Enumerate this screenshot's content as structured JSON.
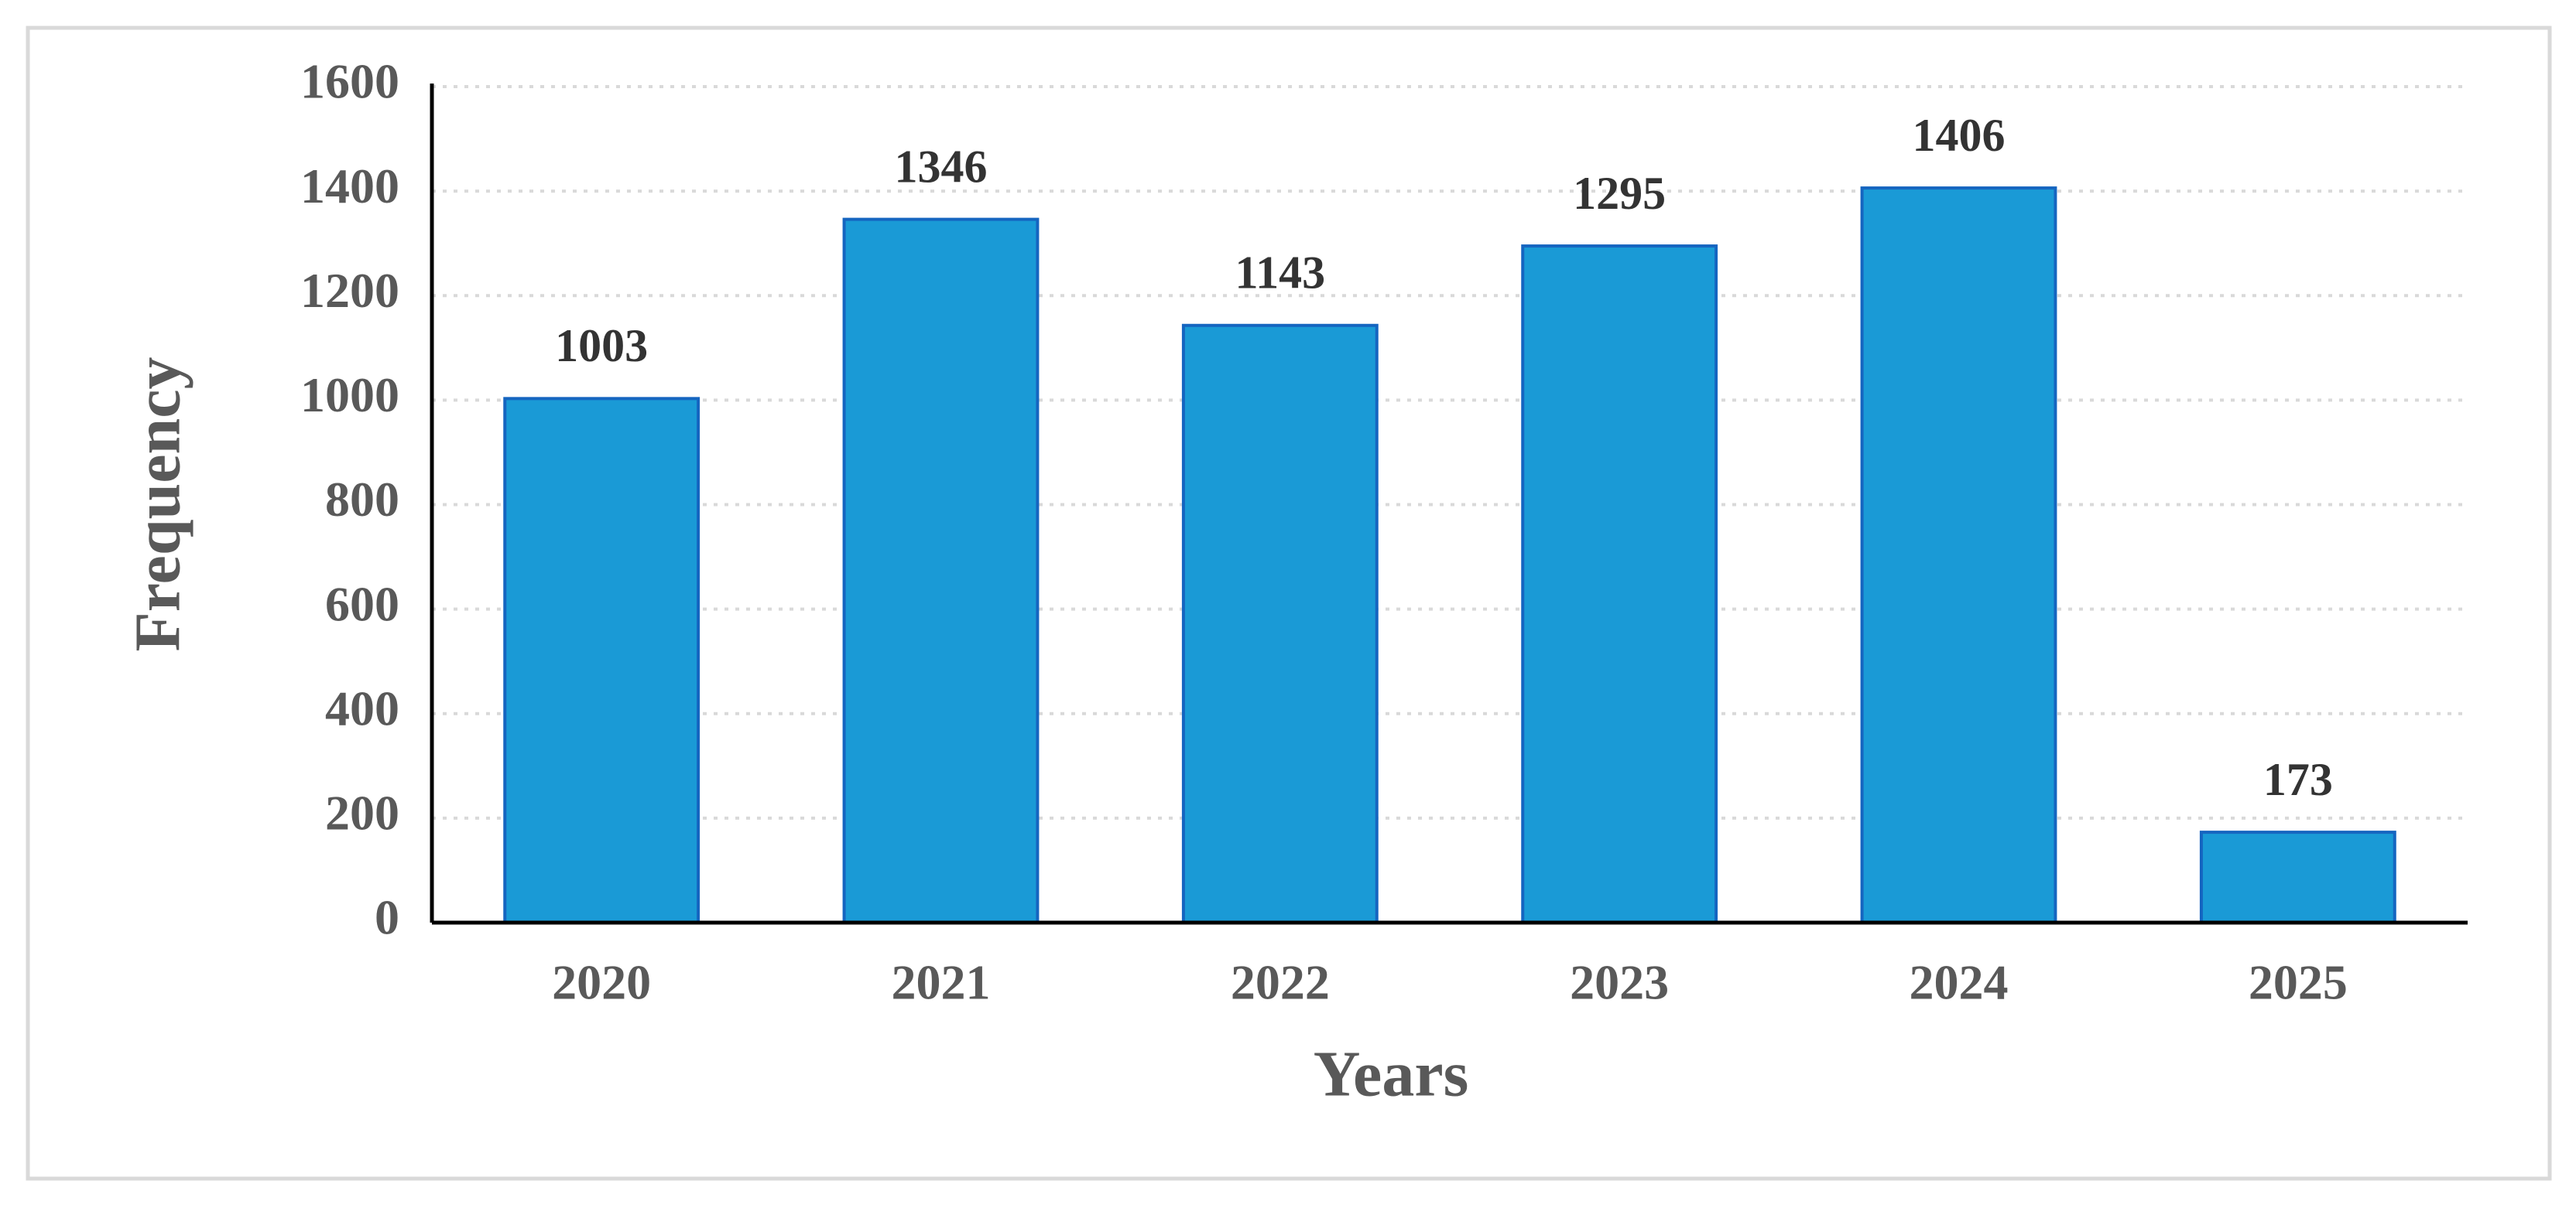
{
  "chart_data": {
    "type": "bar",
    "x_label": "Years",
    "y_label": "Frequency",
    "categories": [
      "2020",
      "2021",
      "2022",
      "2023",
      "2024",
      "2025"
    ],
    "values": [
      1003,
      1346,
      1143,
      1295,
      1406,
      173
    ],
    "color": "#1a9ad6",
    "ylim": [
      0,
      1600
    ],
    "yticks": [
      0,
      200,
      400,
      600,
      800,
      1000,
      1200,
      1400,
      1600
    ],
    "grid": true
  }
}
